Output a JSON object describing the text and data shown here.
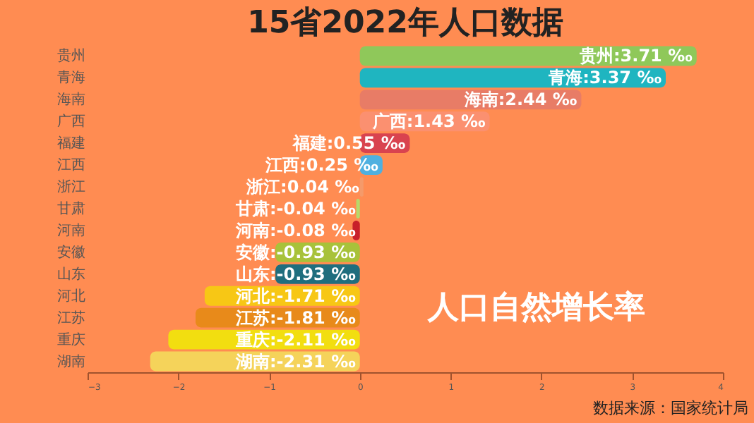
{
  "chart_data": {
    "type": "bar",
    "orientation": "horizontal",
    "title": "15省2022年人口数据",
    "categories": [
      "贵州",
      "青海",
      "海南",
      "广西",
      "福建",
      "江西",
      "浙江",
      "甘肃",
      "河南",
      "安徽",
      "山东",
      "河北",
      "江苏",
      "重庆",
      "湖南"
    ],
    "values": [
      3.71,
      3.37,
      2.44,
      1.43,
      0.55,
      0.25,
      0.04,
      -0.04,
      -0.08,
      -0.93,
      -0.93,
      -1.71,
      -1.81,
      -2.11,
      -2.31
    ],
    "value_labels": [
      "贵州:3.71 ‰",
      "青海:3.37 ‰",
      "海南:2.44 ‰",
      "广西:1.43 ‰",
      "福建:0.55 ‰",
      "江西:0.25 ‰",
      "浙江:0.04 ‰",
      "甘肃:-0.04 ‰",
      "河南:-0.08 ‰",
      "安徽:-0.93 ‰",
      "山东:-0.93 ‰",
      "河北:-1.71 ‰",
      "江苏:-1.81 ‰",
      "重庆:-2.11 ‰",
      "湖南:-2.31 ‰"
    ],
    "colors": [
      "#8fc85a",
      "#1fb5c0",
      "#e87c66",
      "#fb9070",
      "#d9434f",
      "#4fb0e0",
      "#f59a6a",
      "#b7d96b",
      "#c8202a",
      "#a8c23a",
      "#1f6e7e",
      "#f7c715",
      "#e88a1a",
      "#f2de10",
      "#f5d35a"
    ],
    "xlim": [
      -3,
      4
    ],
    "xticks": [
      -3,
      -2,
      -1,
      0,
      1,
      2,
      3,
      4
    ],
    "grid": false,
    "legend": false,
    "annotations": [
      "人口自然增长率",
      "数据来源：国家统计局"
    ]
  }
}
